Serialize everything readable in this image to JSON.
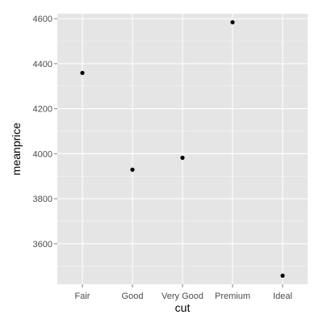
{
  "chart_data": {
    "type": "scatter",
    "xlabel": "cut",
    "ylabel": "meanprice",
    "categories": [
      "Fair",
      "Good",
      "Very Good",
      "Premium",
      "Ideal"
    ],
    "values": [
      4359,
      3929,
      3982,
      4584,
      3458
    ],
    "yticks": [
      3600,
      3800,
      4000,
      4200,
      4400,
      4600
    ],
    "ylim": [
      3420,
      4622
    ],
    "grid": true,
    "legend": "none",
    "colors": {
      "panel": "#e5e5e5",
      "grid_major": "#ffffff",
      "grid_minor": "#f2f2f2",
      "point": "#000000"
    }
  }
}
